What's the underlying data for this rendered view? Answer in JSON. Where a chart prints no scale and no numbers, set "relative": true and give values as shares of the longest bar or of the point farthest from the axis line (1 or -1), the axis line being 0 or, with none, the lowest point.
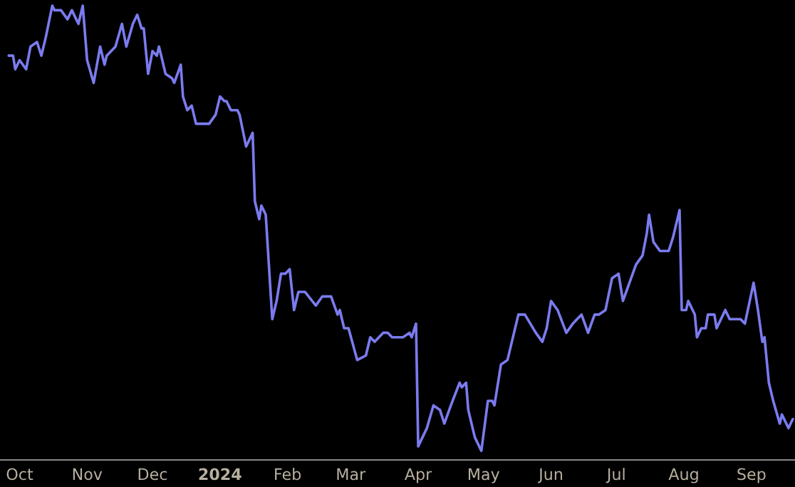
{
  "chart_data": {
    "type": "line",
    "relative": true,
    "marker": "none",
    "line_style": "solid",
    "xlim": [
      "2023-09-22",
      "2024-09-21"
    ],
    "xticks": [
      {
        "value": "2023-10-01",
        "label": "Oct"
      },
      {
        "value": "2023-11-01",
        "label": "Nov"
      },
      {
        "value": "2023-12-01",
        "label": "Dec"
      },
      {
        "value": "2024-01-01",
        "label": "2024"
      },
      {
        "value": "2024-02-01",
        "label": "Feb"
      },
      {
        "value": "2024-03-01",
        "label": "Mar"
      },
      {
        "value": "2024-04-01",
        "label": "Apr"
      },
      {
        "value": "2024-05-01",
        "label": "May"
      },
      {
        "value": "2024-06-01",
        "label": "Jun"
      },
      {
        "value": "2024-07-01",
        "label": "Jul"
      },
      {
        "value": "2024-08-01",
        "label": "Aug"
      },
      {
        "value": "2024-09-01",
        "label": "Sep"
      }
    ],
    "tick_labels": "x",
    "series": [
      {
        "color": "#7b7bef",
        "x": [
          "2023-09-26",
          "2023-09-28",
          "2023-09-29",
          "2023-10-01",
          "2023-10-04",
          "2023-10-06",
          "2023-10-09",
          "2023-10-11",
          "2023-10-13",
          "2023-10-16",
          "2023-10-17",
          "2023-10-20",
          "2023-10-23",
          "2023-10-25",
          "2023-10-28",
          "2023-10-30",
          "2023-11-01",
          "2023-11-04",
          "2023-11-07",
          "2023-11-09",
          "2023-11-10",
          "2023-11-14",
          "2023-11-17",
          "2023-11-19",
          "2023-11-22",
          "2023-11-24",
          "2023-11-26",
          "2023-11-27",
          "2023-11-29",
          "2023-12-01",
          "2023-12-03",
          "2023-12-04",
          "2023-12-07",
          "2023-12-10",
          "2023-12-11",
          "2023-12-14",
          "2023-12-15",
          "2023-12-17",
          "2023-12-19",
          "2023-12-21",
          "2023-12-24",
          "2023-12-27",
          "2023-12-30",
          "2024-01-01",
          "2024-01-03",
          "2024-01-04",
          "2024-01-06",
          "2024-01-09",
          "2024-01-10",
          "2024-01-13",
          "2024-01-16",
          "2024-01-17",
          "2024-01-19",
          "2024-01-20",
          "2024-01-22",
          "2024-01-25",
          "2024-01-27",
          "2024-01-29",
          "2024-01-31",
          "2024-02-02",
          "2024-02-04",
          "2024-02-06",
          "2024-02-09",
          "2024-02-14",
          "2024-02-17",
          "2024-02-21",
          "2024-02-24",
          "2024-02-25",
          "2024-02-27",
          "2024-02-29",
          "2024-03-04",
          "2024-03-08",
          "2024-03-10",
          "2024-03-12",
          "2024-03-16",
          "2024-03-18",
          "2024-03-20",
          "2024-03-25",
          "2024-03-28",
          "2024-03-29",
          "2024-03-31",
          "2024-04-01",
          "2024-04-03",
          "2024-04-05",
          "2024-04-08",
          "2024-04-11",
          "2024-04-13",
          "2024-04-16",
          "2024-04-20",
          "2024-04-21",
          "2024-04-23",
          "2024-04-24",
          "2024-04-27",
          "2024-04-30",
          "2024-05-03",
          "2024-05-05",
          "2024-05-06",
          "2024-05-07",
          "2024-05-09",
          "2024-05-12",
          "2024-05-14",
          "2024-05-17",
          "2024-05-20",
          "2024-05-25",
          "2024-05-28",
          "2024-05-30",
          "2024-06-01",
          "2024-06-04",
          "2024-06-08",
          "2024-06-11",
          "2024-06-15",
          "2024-06-18",
          "2024-06-21",
          "2024-06-23",
          "2024-06-26",
          "2024-06-29",
          "2024-07-02",
          "2024-07-04",
          "2024-07-07",
          "2024-07-10",
          "2024-07-13",
          "2024-07-15",
          "2024-07-16",
          "2024-07-18",
          "2024-07-21",
          "2024-07-25",
          "2024-07-27",
          "2024-07-30",
          "2024-07-31",
          "2024-08-02",
          "2024-08-03",
          "2024-08-06",
          "2024-08-07",
          "2024-08-09",
          "2024-08-11",
          "2024-08-12",
          "2024-08-15",
          "2024-08-16",
          "2024-08-20",
          "2024-08-22",
          "2024-08-27",
          "2024-08-29",
          "2024-09-02",
          "2024-09-04",
          "2024-09-06",
          "2024-09-07",
          "2024-09-09",
          "2024-09-11",
          "2024-09-14",
          "2024-09-15",
          "2024-09-18",
          "2024-09-20"
        ],
        "values": [
          0.89,
          0.89,
          0.86,
          0.88,
          0.86,
          0.91,
          0.92,
          0.89,
          0.93,
          1.0,
          0.99,
          0.99,
          0.97,
          0.99,
          0.96,
          1.0,
          0.88,
          0.83,
          0.91,
          0.87,
          0.89,
          0.91,
          0.96,
          0.91,
          0.96,
          0.98,
          0.95,
          0.95,
          0.85,
          0.9,
          0.89,
          0.91,
          0.85,
          0.84,
          0.83,
          0.87,
          0.8,
          0.77,
          0.78,
          0.74,
          0.74,
          0.74,
          0.76,
          0.8,
          0.79,
          0.79,
          0.77,
          0.77,
          0.76,
          0.69,
          0.72,
          0.57,
          0.53,
          0.56,
          0.54,
          0.31,
          0.35,
          0.41,
          0.41,
          0.42,
          0.33,
          0.37,
          0.37,
          0.34,
          0.36,
          0.36,
          0.32,
          0.33,
          0.29,
          0.29,
          0.22,
          0.23,
          0.27,
          0.26,
          0.28,
          0.28,
          0.27,
          0.27,
          0.28,
          0.27,
          0.3,
          0.03,
          0.05,
          0.07,
          0.12,
          0.11,
          0.08,
          0.12,
          0.17,
          0.16,
          0.17,
          0.11,
          0.05,
          0.02,
          0.13,
          0.13,
          0.12,
          0.15,
          0.21,
          0.22,
          0.26,
          0.32,
          0.32,
          0.28,
          0.26,
          0.29,
          0.35,
          0.33,
          0.28,
          0.3,
          0.32,
          0.28,
          0.32,
          0.32,
          0.33,
          0.4,
          0.41,
          0.35,
          0.39,
          0.43,
          0.45,
          0.5,
          0.54,
          0.48,
          0.46,
          0.46,
          0.49,
          0.55,
          0.33,
          0.33,
          0.35,
          0.32,
          0.27,
          0.29,
          0.29,
          0.32,
          0.32,
          0.29,
          0.33,
          0.31,
          0.31,
          0.3,
          0.39,
          0.33,
          0.26,
          0.27,
          0.17,
          0.13,
          0.08,
          0.1,
          0.07,
          0.09
        ]
      }
    ]
  }
}
